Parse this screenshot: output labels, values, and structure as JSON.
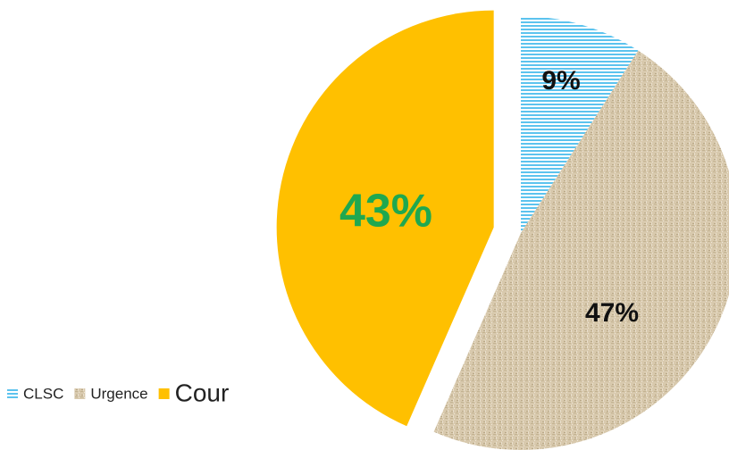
{
  "chart_data": {
    "type": "pie",
    "categories": [
      "CLSC",
      "Urgence",
      "Cour"
    ],
    "values": [
      9,
      47,
      43
    ],
    "value_labels": [
      "9%",
      "47%",
      "43%"
    ],
    "colors": [
      "#5cc3ee",
      "#d8c9ad",
      "#ffc000"
    ],
    "label_colors": [
      "#111111",
      "#111111",
      "#1fa84f"
    ],
    "legend": "bottom-left"
  }
}
